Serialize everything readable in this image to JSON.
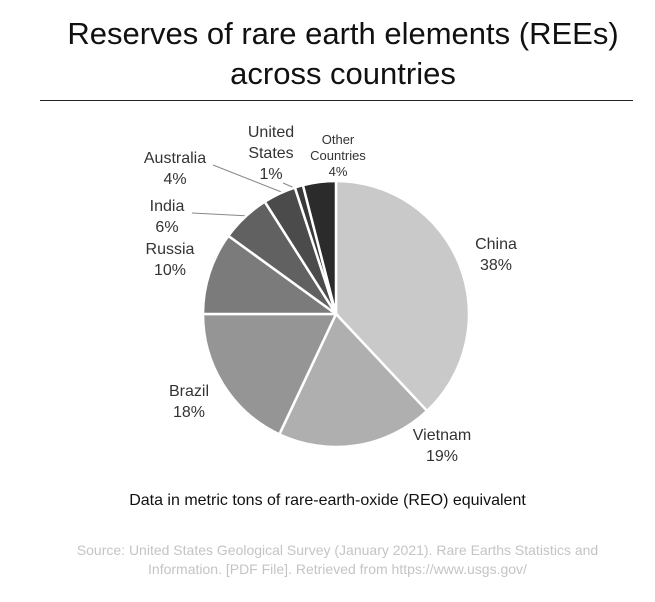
{
  "chart_data": {
    "type": "pie",
    "title": "Reserves of rare earth elements (REEs) across countries",
    "categories": [
      "China",
      "Vietnam",
      "Brazil",
      "Russia",
      "India",
      "Australia",
      "United States",
      "Other Countries"
    ],
    "values": [
      38,
      19,
      18,
      10,
      6,
      4,
      1,
      4
    ],
    "value_labels": [
      "38%",
      "19%",
      "18%",
      "10%",
      "6%",
      "4%",
      "1%",
      "4%"
    ],
    "colors": [
      "#c9c9c9",
      "#afafaf",
      "#959595",
      "#7b7b7b",
      "#616161",
      "#4b4b4b",
      "#393939",
      "#2b2b2b"
    ],
    "note": "Data in metric tons of rare-earth-oxide (REO) equivalent",
    "source": "Source: United States Geological Survey (January 2021). Rare Earths Statistics and Information. [PDF File]. Retrieved from https://www.usgs.gov/"
  }
}
